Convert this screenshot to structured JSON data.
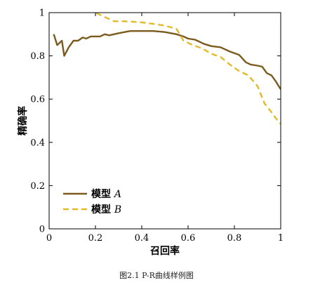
{
  "caption": "图2.1  P-R曲线样例图",
  "chart_data": {
    "type": "line",
    "xlabel": "召回率",
    "ylabel": "精确率",
    "xlim": [
      0,
      1
    ],
    "ylim": [
      0,
      1
    ],
    "xticks": [
      "0",
      "0.2",
      "0.4",
      "0.6",
      "0.8",
      "1"
    ],
    "yticks": [
      "0",
      "0.2",
      "0.4",
      "0.6",
      "0.8",
      "1"
    ],
    "grid": false,
    "legend_position": "bottom-left",
    "series": [
      {
        "name_prefix": "模型 ",
        "name_var": "A",
        "color": "#7a5a1e",
        "style": "solid",
        "x": [
          0.02,
          0.035,
          0.055,
          0.065,
          0.085,
          0.105,
          0.125,
          0.145,
          0.16,
          0.18,
          0.2,
          0.22,
          0.24,
          0.26,
          0.3,
          0.35,
          0.4,
          0.45,
          0.5,
          0.55,
          0.58,
          0.6,
          0.63,
          0.67,
          0.7,
          0.74,
          0.78,
          0.82,
          0.85,
          0.87,
          0.9,
          0.92,
          0.94,
          0.96,
          0.98,
          1.0
        ],
        "y": [
          0.9,
          0.85,
          0.87,
          0.8,
          0.84,
          0.87,
          0.87,
          0.885,
          0.88,
          0.89,
          0.89,
          0.89,
          0.9,
          0.895,
          0.905,
          0.915,
          0.915,
          0.915,
          0.91,
          0.9,
          0.89,
          0.88,
          0.875,
          0.855,
          0.845,
          0.84,
          0.82,
          0.805,
          0.77,
          0.76,
          0.755,
          0.75,
          0.72,
          0.71,
          0.68,
          0.645
        ]
      },
      {
        "name_prefix": "模型 ",
        "name_var": "B",
        "color": "#e3b92a",
        "style": "dashed",
        "x": [
          0.17,
          0.2,
          0.24,
          0.28,
          0.32,
          0.36,
          0.4,
          0.45,
          0.5,
          0.55,
          0.58,
          0.62,
          0.66,
          0.7,
          0.74,
          0.78,
          0.82,
          0.86,
          0.9,
          0.93,
          0.96,
          0.98,
          1.0
        ],
        "y": [
          1.02,
          1.0,
          0.98,
          0.96,
          0.96,
          0.958,
          0.955,
          0.948,
          0.94,
          0.925,
          0.87,
          0.85,
          0.835,
          0.81,
          0.795,
          0.76,
          0.73,
          0.71,
          0.66,
          0.58,
          0.54,
          0.51,
          0.485
        ]
      }
    ]
  }
}
